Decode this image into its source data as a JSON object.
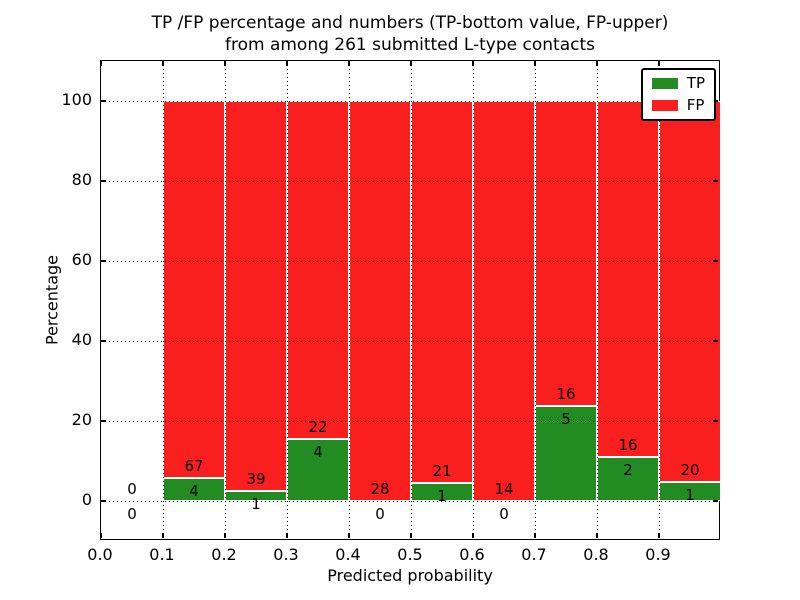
{
  "figure": {
    "title_line1": "TP /FP percentage and numbers (TP-bottom value, FP-upper)",
    "title_line2": "from among 261 submitted L-type contacts"
  },
  "chart_data": {
    "type": "bar",
    "stacked": true,
    "title": "TP /FP percentage and numbers (TP-bottom value, FP-upper)\nfrom among 261 submitted L-type contacts",
    "xlabel": "Predicted probability",
    "ylabel": "Percentage",
    "xlim": [
      0.0,
      1.0
    ],
    "ylim": [
      -10,
      110
    ],
    "grid": true,
    "legend_position": "upper right",
    "total_submitted_contacts": 261,
    "bin_width": 0.1,
    "bin_starts": [
      0.0,
      0.1,
      0.2,
      0.3,
      0.4,
      0.5,
      0.6,
      0.7,
      0.8,
      0.9
    ],
    "xticks": [
      {
        "v": 0.0,
        "label": "0.0"
      },
      {
        "v": 0.1,
        "label": "0.1"
      },
      {
        "v": 0.2,
        "label": "0.2"
      },
      {
        "v": 0.3,
        "label": "0.3"
      },
      {
        "v": 0.4,
        "label": "0.4"
      },
      {
        "v": 0.5,
        "label": "0.5"
      },
      {
        "v": 0.6,
        "label": "0.6"
      },
      {
        "v": 0.7,
        "label": "0.7"
      },
      {
        "v": 0.8,
        "label": "0.8"
      },
      {
        "v": 0.9,
        "label": "0.9"
      }
    ],
    "yticks": [
      {
        "v": 0,
        "label": "0"
      },
      {
        "v": 20,
        "label": "20"
      },
      {
        "v": 40,
        "label": "40"
      },
      {
        "v": 60,
        "label": "60"
      },
      {
        "v": 80,
        "label": "80"
      },
      {
        "v": 100,
        "label": "100"
      }
    ],
    "series": [
      {
        "name": "TP",
        "color": "#228b22",
        "counts": [
          0,
          4,
          1,
          4,
          0,
          1,
          0,
          5,
          2,
          1
        ],
        "pct_of_bin": [
          0,
          5.63,
          2.5,
          15.38,
          0,
          4.55,
          0,
          23.81,
          11.11,
          4.76
        ]
      },
      {
        "name": "FP",
        "color": "#fa1f1f",
        "counts": [
          0,
          67,
          39,
          22,
          28,
          21,
          14,
          16,
          16,
          20
        ],
        "pct_of_bin": [
          0,
          94.37,
          97.5,
          84.62,
          100,
          95.45,
          100,
          76.19,
          88.89,
          95.24
        ]
      }
    ]
  },
  "colors": {
    "tp_green": "#228b22",
    "fp_red": "#fa1f1f",
    "background": "#ffffff",
    "axis": "#000000"
  }
}
